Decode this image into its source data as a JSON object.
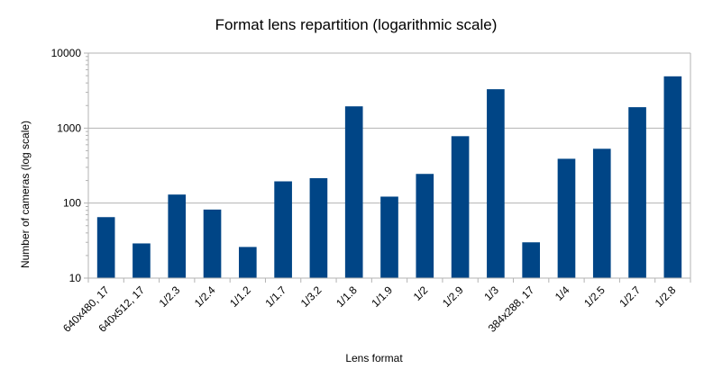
{
  "chart_data": {
    "type": "bar",
    "title": "Format lens repartition (logarithmic scale)",
    "xlabel": "Lens format",
    "ylabel": "Number of cameras (log scale)",
    "y_scale": "log",
    "ylim": [
      10,
      10000
    ],
    "y_ticks": [
      "10",
      "100",
      "1000",
      "10000"
    ],
    "grid": "horizontal",
    "legend": "none",
    "bar_color": "#004586",
    "categories": [
      "640x480, 17",
      "640x512, 17",
      "1/2.3",
      "1/2.4",
      "1/1.2",
      "1/1.7",
      "1/3.2",
      "1/1.8",
      "1/1.9",
      "1/2",
      "1/2.9",
      "1/3",
      "384x288, 17",
      "1/4",
      "1/2.5",
      "1/2.7",
      "1/2.8"
    ],
    "values": [
      65,
      29,
      130,
      82,
      26,
      195,
      215,
      1950,
      122,
      245,
      780,
      3300,
      30,
      390,
      530,
      1900,
      4900
    ]
  }
}
